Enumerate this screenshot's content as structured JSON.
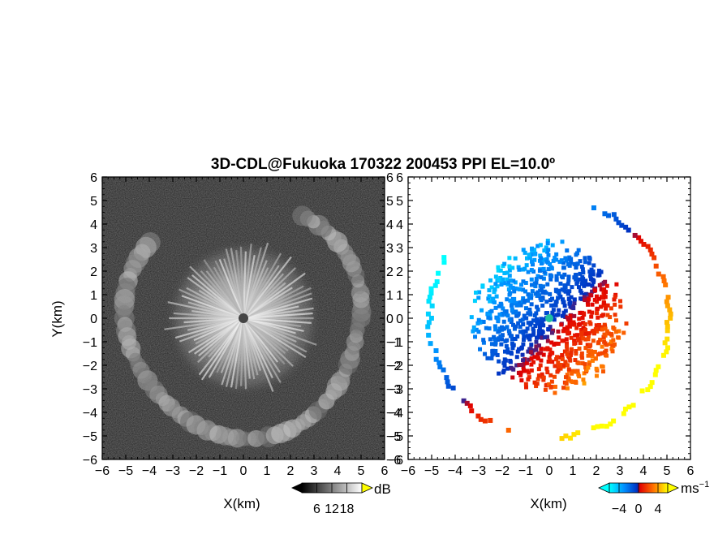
{
  "chart_data": [
    {
      "type": "heatmap",
      "title": "3D-CDL@Fukuoka 170322 200453 PPI EL=10.0º",
      "xlabel": "X(km)",
      "ylabel": "Y(km)",
      "xlim": [
        -6,
        6
      ],
      "ylim": [
        -6,
        6
      ],
      "xticks": [
        "−6",
        "−5",
        "−4",
        "−3",
        "−2",
        "−1",
        "0",
        "1",
        "2",
        "3",
        "4",
        "5",
        "6"
      ],
      "yticks": [
        "6",
        "5",
        "4",
        "3",
        "2",
        "1",
        "0",
        "−1",
        "−2",
        "−3",
        "−4",
        "−5",
        "−6"
      ],
      "colorbar": {
        "unit": "dB",
        "ticks": [
          "6",
          "12",
          "18"
        ],
        "range": [
          0,
          24
        ]
      },
      "quantity": "signal intensity",
      "colors": {
        "background": "#262626",
        "echo": "#dcdcdc"
      }
    },
    {
      "type": "heatmap",
      "xlabel": "X(km)",
      "xlim": [
        -6,
        6
      ],
      "ylim": [
        -6,
        6
      ],
      "xticks": [
        "−6",
        "−5",
        "−4",
        "−3",
        "−2",
        "−1",
        "0",
        "1",
        "2",
        "3",
        "4",
        "5",
        "6"
      ],
      "yticks": [
        "6",
        "5",
        "4",
        "3",
        "2",
        "1",
        "0",
        "−1",
        "−2",
        "−3",
        "−4",
        "−5",
        "−6"
      ],
      "colorbar": {
        "unit": "ms",
        "unit_superscript": "−1",
        "ticks": [
          "−4",
          "0",
          "4"
        ],
        "range": [
          -6,
          6
        ]
      },
      "quantity": "doppler velocity",
      "colors": {
        "negative": "#0050e0",
        "strong_negative": "#00e0ff",
        "positive": "#ff3000",
        "strong_positive": "#ffe000",
        "zero": "#20c0a0"
      }
    }
  ]
}
